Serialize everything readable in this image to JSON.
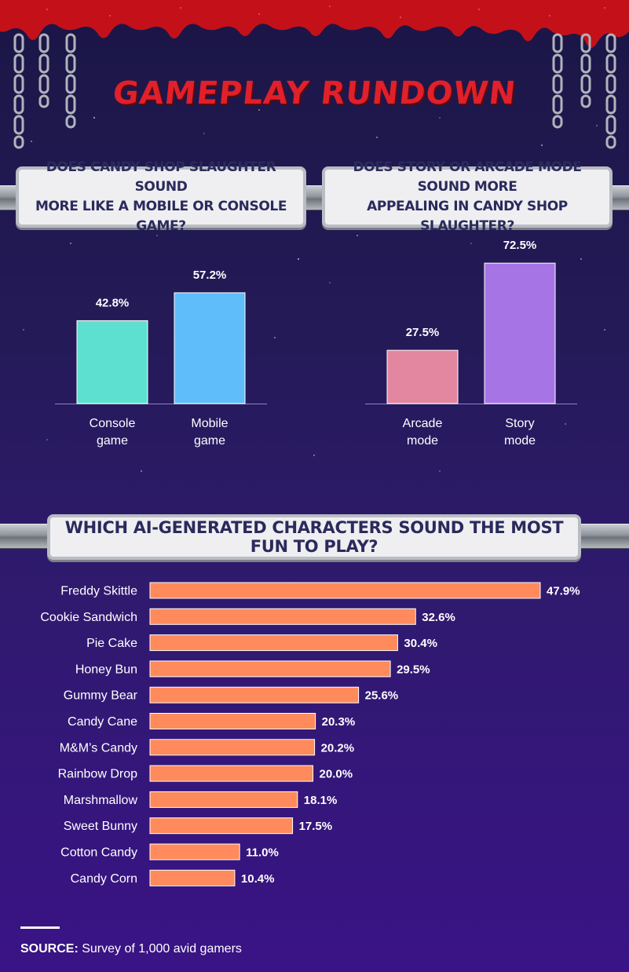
{
  "title": "GAMEPLAY RUNDOWN",
  "colors": {
    "console": "#5de0d0",
    "mobile": "#5fbdfa",
    "arcade": "#e3869f",
    "story": "#a774e6",
    "bar": "#ff8a5c",
    "blood": "#c41119"
  },
  "questions": {
    "q1": "DOES CANDY SHOP SLAUGHTER SOUND MORE LIKE A MOBILE OR CONSOLE GAME?",
    "q1_line1": "DOES CANDY SHOP SLAUGHTER SOUND",
    "q1_line2": "MORE LIKE A MOBILE OR CONSOLE GAME?",
    "q2_line1": "DOES STORY OR ARCADE MODE SOUND MORE",
    "q2_line2": "APPEALING IN CANDY SHOP SLAUGHTER?",
    "q3": "WHICH AI-GENERATED CHARACTERS SOUND THE MOST FUN TO PLAY?"
  },
  "chart_data": [
    {
      "type": "bar",
      "title": "DOES CANDY SHOP SLAUGHTER SOUND MORE LIKE A MOBILE OR CONSOLE GAME?",
      "categories": [
        [
          "Console",
          "game"
        ],
        [
          "Mobile",
          "game"
        ]
      ],
      "values": [
        42.8,
        57.2
      ],
      "labels": [
        "42.8%",
        "57.2%"
      ],
      "colors": [
        "#5de0d0",
        "#5fbdfa"
      ],
      "ylim": [
        0,
        75
      ]
    },
    {
      "type": "bar",
      "title": "DOES STORY OR ARCADE MODE SOUND MORE APPEALING IN CANDY SHOP SLAUGHTER?",
      "categories": [
        [
          "Arcade",
          "mode"
        ],
        [
          "Story",
          "mode"
        ]
      ],
      "values": [
        27.5,
        72.5
      ],
      "labels": [
        "27.5%",
        "72.5%"
      ],
      "colors": [
        "#e3869f",
        "#a774e6"
      ],
      "ylim": [
        0,
        75
      ]
    },
    {
      "type": "bar",
      "orientation": "horizontal",
      "title": "WHICH AI-GENERATED CHARACTERS SOUND THE MOST FUN TO PLAY?",
      "categories": [
        "Freddy Skittle",
        "Cookie Sandwich",
        "Pie Cake",
        "Honey Bun",
        "Gummy Bear",
        "Candy Cane",
        "M&M’s Candy",
        "Rainbow Drop",
        "Marshmallow",
        "Sweet Bunny",
        "Cotton Candy",
        "Candy Corn"
      ],
      "values": [
        47.9,
        32.6,
        30.4,
        29.5,
        25.6,
        20.3,
        20.2,
        20.0,
        18.1,
        17.5,
        11.0,
        10.4
      ],
      "labels": [
        "47.9%",
        "32.6%",
        "30.4%",
        "29.5%",
        "25.6%",
        "20.3%",
        "20.2%",
        "20.0%",
        "18.1%",
        "17.5%",
        "11.0%",
        "10.4%"
      ],
      "xlim": [
        0,
        47.9
      ]
    }
  ],
  "source": {
    "label": "SOURCE:",
    "text": " Survey of 1,000 avid gamers"
  }
}
